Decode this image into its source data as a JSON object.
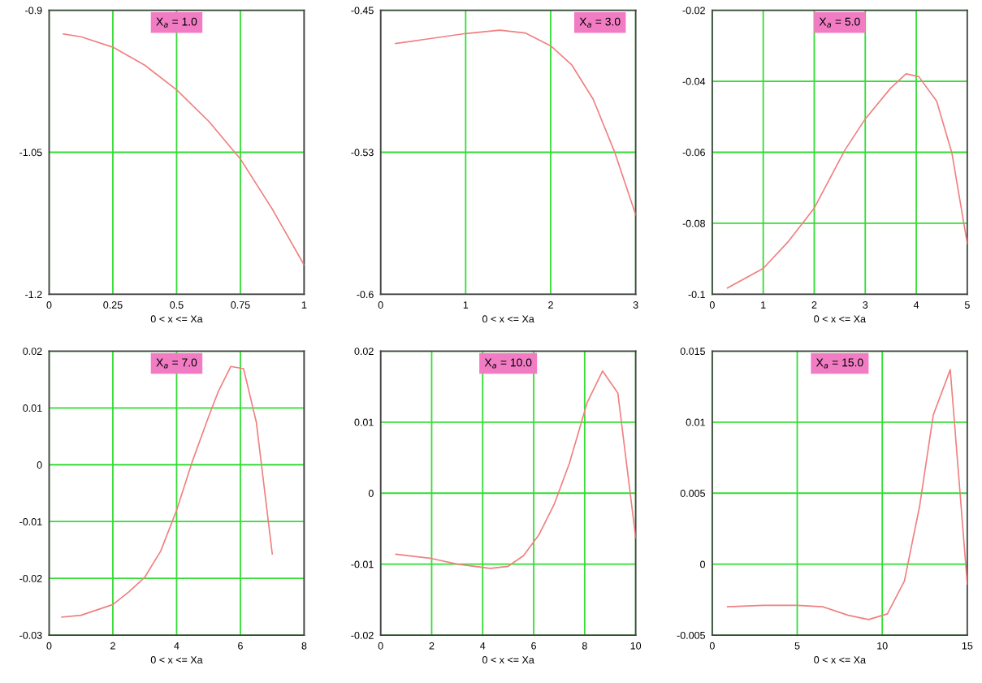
{
  "chart_data": [
    {
      "type": "line",
      "xlabel": "0 < x <= Xa",
      "annotations": [
        "X$_{a}$ = 1.0"
      ],
      "xlim": [
        0,
        1
      ],
      "ylim": [
        -1.2,
        -0.9
      ],
      "xticks": [
        0,
        0.25,
        0.5,
        0.75,
        1
      ],
      "yticks": [
        -0.9,
        -1.05,
        -1.2
      ],
      "grid": true,
      "marker": "none",
      "x": [
        0.056,
        0.125,
        0.25,
        0.375,
        0.5,
        0.625,
        0.75,
        0.875,
        1.0
      ],
      "series": [
        {
          "color": "#f08080",
          "values": [
            -0.925,
            -0.928,
            -0.939,
            -0.958,
            -0.984,
            -1.017,
            -1.057,
            -1.11,
            -1.169
          ]
        }
      ]
    },
    {
      "type": "line",
      "xlabel": "0 < x <= Xa",
      "annotations": [
        "X$_{a}$ = 3.0"
      ],
      "xlim": [
        0,
        3
      ],
      "ylim": [
        -0.6,
        -0.45
      ],
      "xticks": [
        0,
        1,
        2,
        3
      ],
      "yticks": [
        -0.45,
        {
          "value": -0.525,
          "label": "-0.53"
        },
        -0.6
      ],
      "grid": true,
      "marker": "none",
      "x": [
        0.175,
        0.5,
        1.0,
        1.4,
        1.7,
        2.0,
        2.25,
        2.5,
        2.75,
        3.0
      ],
      "series": [
        {
          "color": "#f08080",
          "values": [
            -0.4676,
            -0.4655,
            -0.4623,
            -0.4605,
            -0.462,
            -0.4688,
            -0.479,
            -0.497,
            -0.5246,
            -0.558
          ]
        }
      ]
    },
    {
      "type": "line",
      "xlabel": "0 < x <= Xa",
      "annotations": [
        "X$_{a}$ = 5.0"
      ],
      "xlim": [
        0,
        5
      ],
      "ylim": [
        -0.1,
        -0.02
      ],
      "xticks": [
        0,
        1,
        2,
        3,
        4,
        5
      ],
      "yticks": [
        -0.1,
        -0.08,
        -0.06,
        -0.04,
        -0.02
      ],
      "grid": true,
      "marker": "none",
      "x": [
        0.3,
        1.0,
        1.5,
        2.0,
        2.6,
        3.0,
        3.5,
        3.8,
        4.05,
        4.4,
        4.7,
        5.0
      ],
      "series": [
        {
          "color": "#f08080",
          "values": [
            -0.0982,
            -0.0927,
            -0.085,
            -0.0757,
            -0.0594,
            -0.0506,
            -0.0419,
            -0.0379,
            -0.0387,
            -0.0456,
            -0.0603,
            -0.0857
          ]
        }
      ]
    },
    {
      "type": "line",
      "xlabel": "0 < x <= Xa",
      "annotations": [
        "X$_{a}$ = 7.0"
      ],
      "xlim": [
        0,
        8
      ],
      "ylim": [
        -0.03,
        0.02
      ],
      "xticks": [
        0,
        2,
        4,
        6,
        8
      ],
      "yticks": [
        -0.03,
        -0.02,
        -0.01,
        0,
        0.01,
        0.02
      ],
      "grid": true,
      "marker": "none",
      "x": [
        0.4,
        1.0,
        2.0,
        2.5,
        3.0,
        3.5,
        4.0,
        4.5,
        5.0,
        5.3,
        5.7,
        6.1,
        6.5,
        7.0
      ],
      "series": [
        {
          "color": "#f08080",
          "values": [
            -0.0268,
            -0.0265,
            -0.0246,
            -0.0224,
            -0.0198,
            -0.0152,
            -0.008,
            0.0007,
            0.0084,
            0.0128,
            0.0173,
            0.0169,
            0.0075,
            -0.0157
          ]
        }
      ]
    },
    {
      "type": "line",
      "xlabel": "0 < x <= Xa",
      "annotations": [
        "X$_{a}$ = 10.0"
      ],
      "xlim": [
        0,
        10
      ],
      "ylim": [
        -0.02,
        0.02
      ],
      "xticks": [
        0,
        2,
        4,
        6,
        8,
        10
      ],
      "yticks": [
        -0.02,
        -0.01,
        0,
        0.01,
        0.02
      ],
      "grid": true,
      "marker": "none",
      "x": [
        0.6,
        2.0,
        3.0,
        4.3,
        5.0,
        5.6,
        6.2,
        6.8,
        7.4,
        8.1,
        8.7,
        9.3,
        10.0
      ],
      "series": [
        {
          "color": "#f08080",
          "values": [
            -0.0086,
            -0.0092,
            -0.01,
            -0.0106,
            -0.0103,
            -0.0088,
            -0.0059,
            -0.0016,
            0.0042,
            0.0128,
            0.0172,
            0.0141,
            -0.0063
          ]
        }
      ]
    },
    {
      "type": "line",
      "xlabel": "0 < x <= Xa",
      "annotations": [
        "X$_{a}$ = 15.0"
      ],
      "xlim": [
        0,
        15
      ],
      "ylim": [
        -0.005,
        0.015
      ],
      "xticks": [
        0,
        5,
        10,
        15
      ],
      "yticks": [
        -0.005,
        0,
        0.005,
        0.01,
        0.015
      ],
      "grid": true,
      "marker": "none",
      "x": [
        0.9,
        3.0,
        5.0,
        6.5,
        8.0,
        9.2,
        10.3,
        11.3,
        12.2,
        13.0,
        14.0,
        15.0
      ],
      "series": [
        {
          "color": "#f08080",
          "values": [
            -0.003,
            -0.0029,
            -0.0029,
            -0.003,
            -0.0036,
            -0.0039,
            -0.0035,
            -0.0012,
            0.0041,
            0.0105,
            0.0137,
            -0.0014
          ]
        }
      ]
    }
  ]
}
